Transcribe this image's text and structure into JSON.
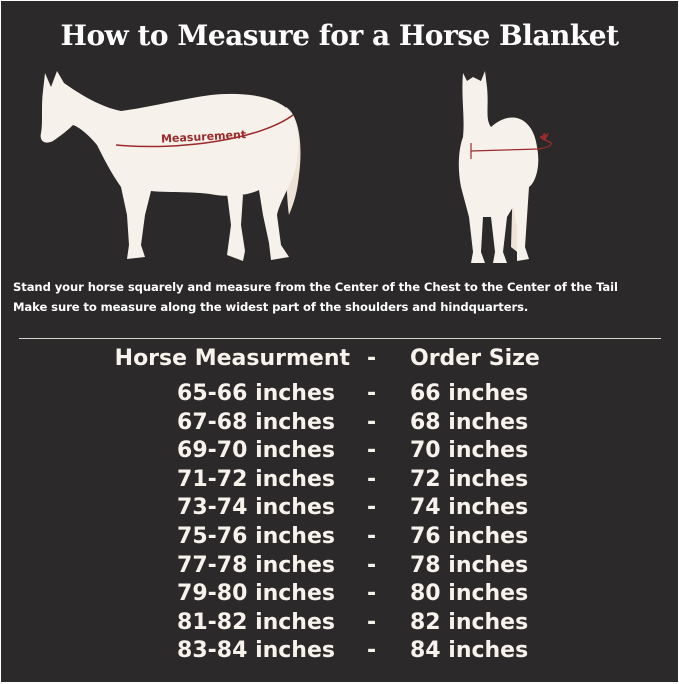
{
  "title": "How to Measure for a Horse Blanket",
  "diagram": {
    "measurement_label": "Measurement",
    "accent_color": "#9b2a2a",
    "horse_color": "#f7f1ec"
  },
  "instructions": [
    "Stand your horse squarely and measure from the Center of the Chest to the Center of the Tail",
    "Make sure to measure along the widest part of the shoulders and hindquarters."
  ],
  "table": {
    "headers": {
      "measurement": "Horse Measurment",
      "separator": "-",
      "size": "Order Size"
    },
    "rows": [
      {
        "measurement": "65-66 inches",
        "separator": "-",
        "size": "66 inches"
      },
      {
        "measurement": "67-68 inches",
        "separator": "-",
        "size": "68 inches"
      },
      {
        "measurement": "69-70 inches",
        "separator": "-",
        "size": "70 inches"
      },
      {
        "measurement": "71-72 inches",
        "separator": "-",
        "size": "72 inches"
      },
      {
        "measurement": "73-74 inches",
        "separator": "-",
        "size": "74 inches"
      },
      {
        "measurement": "75-76 inches",
        "separator": "-",
        "size": "76 inches"
      },
      {
        "measurement": "77-78 inches",
        "separator": "-",
        "size": "78 inches"
      },
      {
        "measurement": "79-80 inches",
        "separator": "-",
        "size": "80 inches"
      },
      {
        "measurement": "81-82 inches",
        "separator": "-",
        "size": "82 inches"
      },
      {
        "measurement": "83-84 inches",
        "separator": "-",
        "size": "84 inches"
      }
    ]
  }
}
